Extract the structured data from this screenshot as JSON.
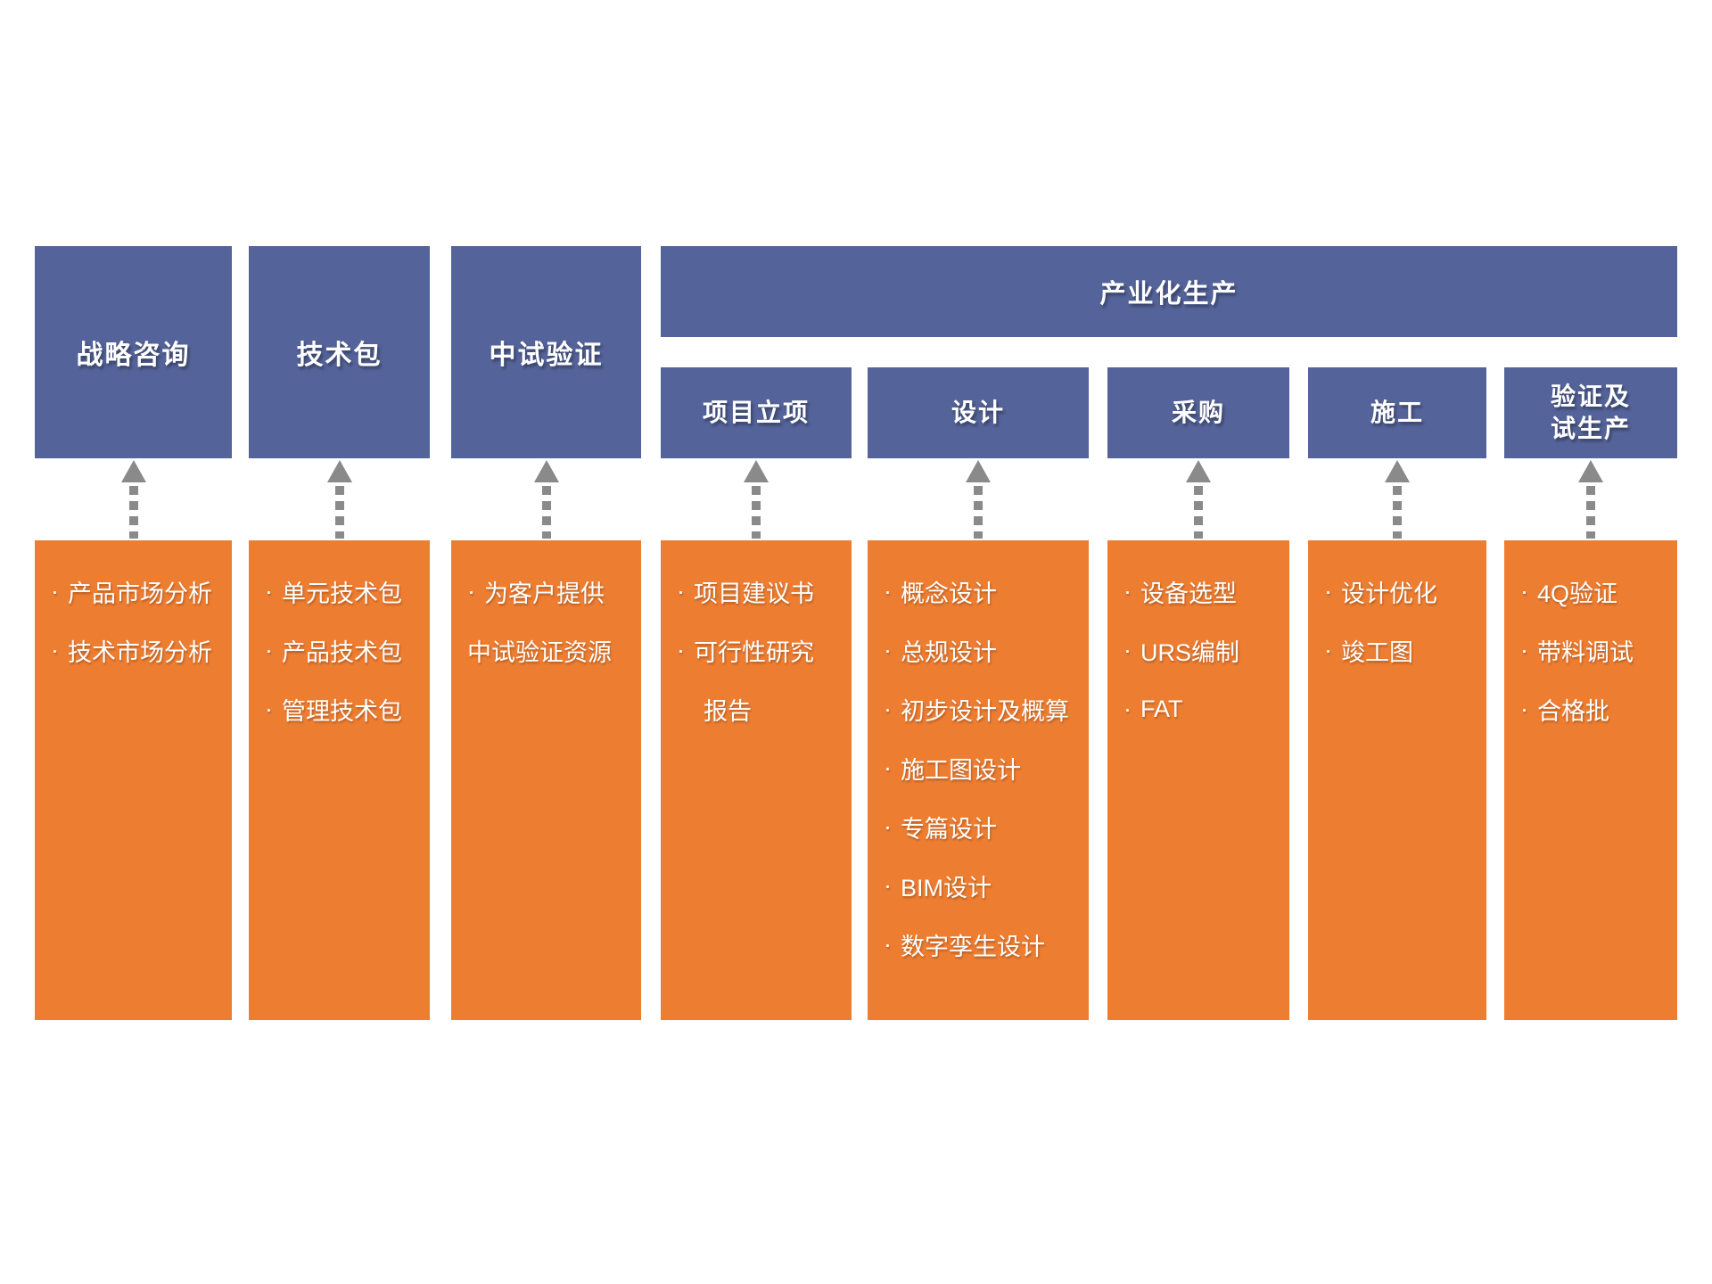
{
  "colors": {
    "blue": "#546399",
    "orange": "#ED7D31",
    "arrow": "#8A8A8A",
    "text_on_box": "#FFFFFF"
  },
  "header": {
    "label": "产业化生产"
  },
  "columns": [
    {
      "title": "战略咨询",
      "items": [
        {
          "text": "产品市场分析",
          "bullet": true
        },
        {
          "text": "技术市场分析",
          "bullet": true
        }
      ]
    },
    {
      "title": "技术包",
      "items": [
        {
          "text": "单元技术包",
          "bullet": true
        },
        {
          "text": "产品技术包",
          "bullet": true
        },
        {
          "text": "管理技术包",
          "bullet": true
        }
      ]
    },
    {
      "title": "中试验证",
      "items": [
        {
          "text": "为客户提供",
          "bullet": true
        },
        {
          "text": "中试验证资源",
          "bullet": false,
          "indent": 0
        }
      ]
    },
    {
      "title": "项目立项",
      "items": [
        {
          "text": "项目建议书",
          "bullet": true
        },
        {
          "text": "可行性研究",
          "bullet": true
        },
        {
          "text": "报告",
          "bullet": false,
          "indent": 1
        }
      ]
    },
    {
      "title": "设计",
      "items": [
        {
          "text": "概念设计",
          "bullet": true
        },
        {
          "text": "总规设计",
          "bullet": true
        },
        {
          "text": "初步设计及概算",
          "bullet": true
        },
        {
          "text": "施工图设计",
          "bullet": true
        },
        {
          "text": "专篇设计",
          "bullet": true
        },
        {
          "text": "BIM设计",
          "bullet": true
        },
        {
          "text": "数字孪生设计",
          "bullet": true
        }
      ]
    },
    {
      "title": "采购",
      "items": [
        {
          "text": "设备选型",
          "bullet": true
        },
        {
          "text": "URS编制",
          "bullet": true
        },
        {
          "text": "FAT",
          "bullet": true
        }
      ]
    },
    {
      "title": "施工",
      "items": [
        {
          "text": "设计优化",
          "bullet": true
        },
        {
          "text": "竣工图",
          "bullet": true
        }
      ]
    },
    {
      "title_line1": "验证及",
      "title_line2": "试生产",
      "items": [
        {
          "text": "4Q验证",
          "bullet": true
        },
        {
          "text": "带料调试",
          "bullet": true
        },
        {
          "text": "合格批",
          "bullet": true
        }
      ]
    }
  ]
}
